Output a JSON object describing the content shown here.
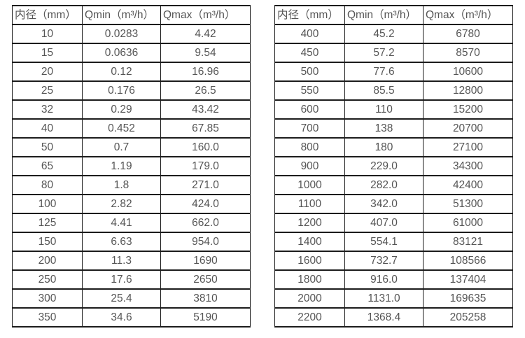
{
  "page": {
    "background_color": "#ffffff",
    "border_color": "#1c1c1c",
    "text_color": "#555555"
  },
  "tables": [
    {
      "name": "small-diameter-flow-table",
      "headers": [
        "内径（mm）",
        "Qmin（m³/h）",
        "Qmax（m³/h）"
      ],
      "rows": [
        [
          "10",
          "0.0283",
          "4.42"
        ],
        [
          "15",
          "0.0636",
          "9.54"
        ],
        [
          "20",
          "0.12",
          "16.96"
        ],
        [
          "25",
          "0.176",
          "26.5"
        ],
        [
          "32",
          "0.29",
          "43.42"
        ],
        [
          "40",
          "0.452",
          "67.85"
        ],
        [
          "50",
          "0.7",
          "160.0"
        ],
        [
          "65",
          "1.19",
          "179.0"
        ],
        [
          "80",
          "1.8",
          "271.0"
        ],
        [
          "100",
          "2.82",
          "424.0"
        ],
        [
          "125",
          "4.41",
          "662.0"
        ],
        [
          "150",
          "6.63",
          "954.0"
        ],
        [
          "200",
          "11.3",
          "1690"
        ],
        [
          "250",
          "17.6",
          "2650"
        ],
        [
          "300",
          "25.4",
          "3810"
        ],
        [
          "350",
          "34.6",
          "5190"
        ]
      ]
    },
    {
      "name": "large-diameter-flow-table",
      "headers": [
        "内径（mm）",
        "Qmin（m³/h）",
        "Qmax（m³/h）"
      ],
      "rows": [
        [
          "400",
          "45.2",
          "6780"
        ],
        [
          "450",
          "57.2",
          "8570"
        ],
        [
          "500",
          "77.6",
          "10600"
        ],
        [
          "550",
          "85.5",
          "12800"
        ],
        [
          "600",
          "110",
          "15200"
        ],
        [
          "700",
          "138",
          "20700"
        ],
        [
          "800",
          "180",
          "27100"
        ],
        [
          "900",
          "229.0",
          "34300"
        ],
        [
          "1000",
          "282.0",
          "42400"
        ],
        [
          "1100",
          "342.0",
          "51300"
        ],
        [
          "1200",
          "407.0",
          "61000"
        ],
        [
          "1400",
          "554.1",
          "83121"
        ],
        [
          "1600",
          "732.7",
          "108566"
        ],
        [
          "1800",
          "916.0",
          "137404"
        ],
        [
          "2000",
          "1131.0",
          "169635"
        ],
        [
          "2200",
          "1368.4",
          "205258"
        ]
      ]
    }
  ]
}
